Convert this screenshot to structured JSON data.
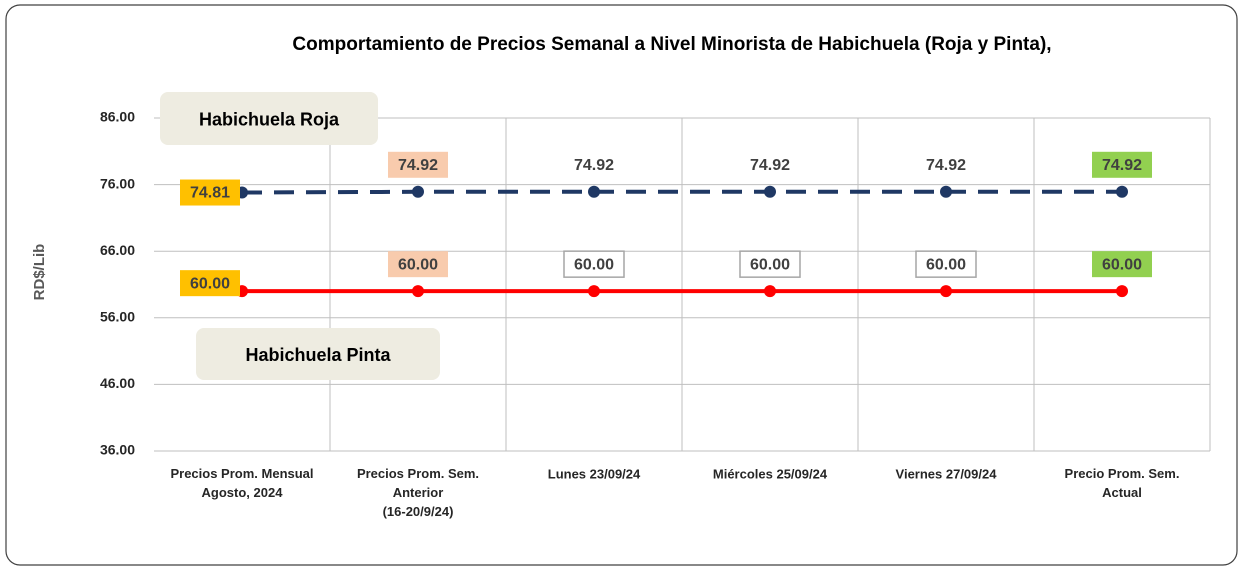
{
  "chart_data": {
    "type": "line",
    "title": "Comportamiento de Precios Semanal a Nivel Minorista de Habichuela (Roja  y Pinta),",
    "y_label": "RD$/Lib",
    "categories": [
      "Precios Prom. Mensual\nAgosto, 2024",
      "Precios Prom. Sem.\nAnterior\n(16-20/9/24)",
      "Lunes  23/09/24",
      "Miércoles 25/09/24",
      "Viernes 27/09/24",
      "Precio Prom. Sem.\nActual"
    ],
    "series": [
      {
        "name": "Habichuela Roja",
        "color": "#1f3864",
        "dash": true,
        "values": [
          74.81,
          74.92,
          74.92,
          74.92,
          74.92,
          74.92
        ],
        "value_labels": [
          "74.81",
          "74.92",
          "74.92",
          "74.92",
          "74.92",
          "74.92"
        ]
      },
      {
        "name": "Habichuela Pinta",
        "color": "#ff0000",
        "dash": false,
        "values": [
          60,
          60,
          60,
          60,
          60,
          60
        ],
        "value_labels": [
          "60.00",
          "60.00",
          "60.00",
          "60.00",
          "60.00",
          "60.00"
        ]
      }
    ],
    "ylim": [
      36,
      86
    ],
    "yticks": [
      {
        "value": 36,
        "label": "36.00"
      },
      {
        "value": 46,
        "label": "46.00"
      },
      {
        "value": 56,
        "label": "56.00"
      },
      {
        "value": 66,
        "label": "66.00"
      },
      {
        "value": 76,
        "label": "76.00"
      },
      {
        "value": 86,
        "label": "86.00"
      }
    ],
    "grid": true
  }
}
